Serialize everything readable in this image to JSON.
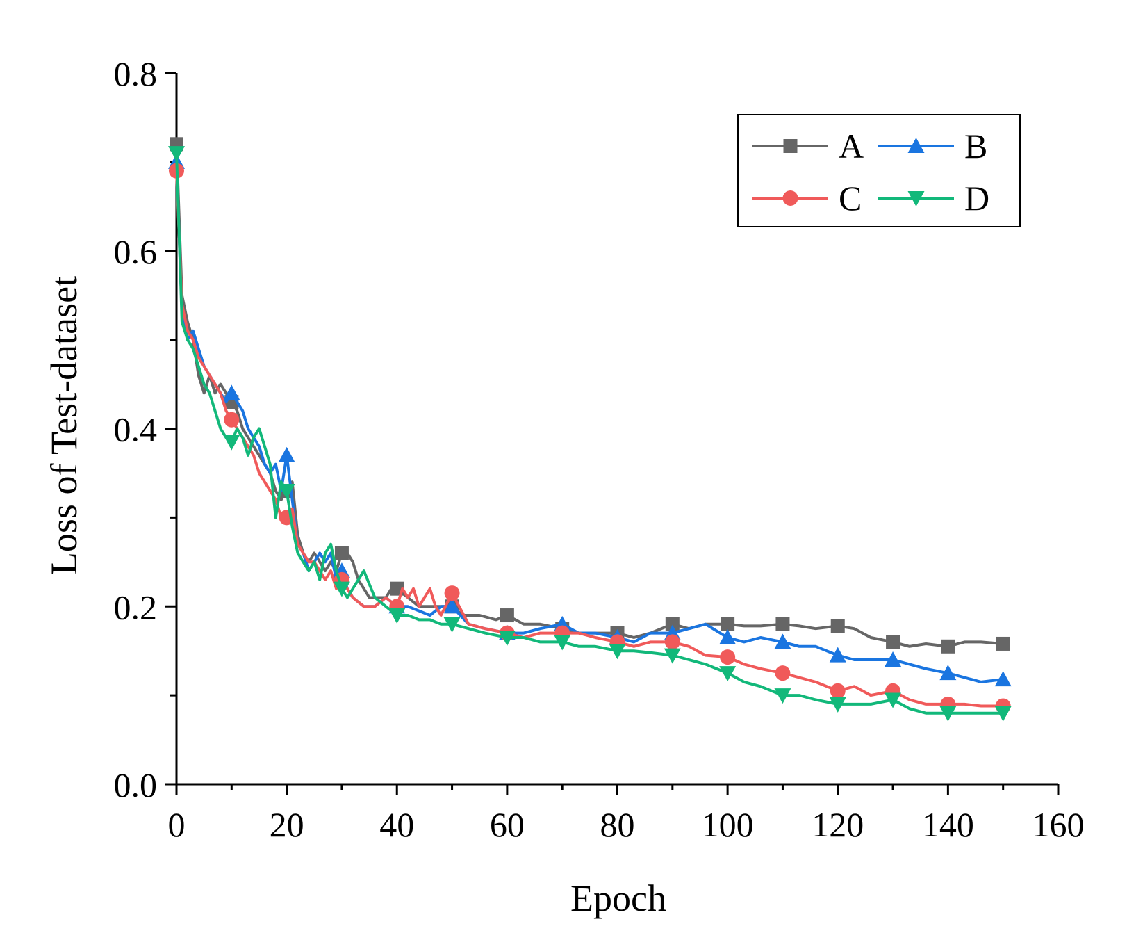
{
  "chart_data": {
    "type": "line",
    "title": "",
    "xlabel": "Epoch",
    "ylabel": "Loss of Test-dataset",
    "xlim": [
      0,
      160
    ],
    "ylim": [
      0.0,
      0.8
    ],
    "xticks": [
      0,
      20,
      40,
      60,
      80,
      100,
      120,
      140,
      160
    ],
    "yticks": [
      0.0,
      0.2,
      0.4,
      0.6,
      0.8
    ],
    "xtick_labels": [
      "0",
      "20",
      "40",
      "60",
      "80",
      "100",
      "120",
      "140",
      "160"
    ],
    "ytick_labels": [
      "0.0",
      "0.2",
      "0.4",
      "0.6",
      "0.8"
    ],
    "grid": false,
    "legend": {
      "position": "top-right",
      "columns": 2
    },
    "series": [
      {
        "name": "A",
        "color": "#666666",
        "marker": "square",
        "marker_every": 10,
        "x": [
          0,
          1,
          2,
          3,
          4,
          5,
          6,
          7,
          8,
          9,
          10,
          11,
          12,
          13,
          14,
          15,
          16,
          17,
          18,
          19,
          20,
          21,
          22,
          23,
          24,
          25,
          26,
          27,
          28,
          29,
          30,
          31,
          32,
          33,
          34,
          35,
          36,
          38,
          39,
          40,
          42,
          44,
          46,
          48,
          50,
          52,
          55,
          58,
          60,
          63,
          66,
          70,
          73,
          76,
          80,
          83,
          86,
          90,
          93,
          96,
          100,
          103,
          106,
          110,
          113,
          116,
          120,
          123,
          126,
          130,
          133,
          136,
          140,
          143,
          146,
          150
        ],
        "values": [
          0.72,
          0.55,
          0.52,
          0.5,
          0.46,
          0.44,
          0.46,
          0.44,
          0.45,
          0.44,
          0.43,
          0.42,
          0.4,
          0.39,
          0.38,
          0.37,
          0.36,
          0.35,
          0.33,
          0.32,
          0.33,
          0.34,
          0.28,
          0.26,
          0.25,
          0.26,
          0.25,
          0.24,
          0.25,
          0.24,
          0.26,
          0.26,
          0.25,
          0.23,
          0.22,
          0.21,
          0.21,
          0.21,
          0.22,
          0.22,
          0.21,
          0.2,
          0.2,
          0.2,
          0.2,
          0.19,
          0.19,
          0.185,
          0.19,
          0.18,
          0.18,
          0.175,
          0.17,
          0.17,
          0.17,
          0.165,
          0.17,
          0.18,
          0.175,
          0.18,
          0.18,
          0.178,
          0.178,
          0.18,
          0.178,
          0.175,
          0.178,
          0.175,
          0.165,
          0.16,
          0.155,
          0.158,
          0.155,
          0.16,
          0.16,
          0.158
        ]
      },
      {
        "name": "B",
        "color": "#1a75e0",
        "marker": "triangle-up",
        "marker_every": 10,
        "x": [
          0,
          1,
          2,
          3,
          4,
          5,
          6,
          7,
          8,
          9,
          10,
          11,
          12,
          13,
          14,
          15,
          16,
          17,
          18,
          19,
          20,
          21,
          22,
          23,
          24,
          25,
          26,
          27,
          28,
          29,
          30,
          31,
          32,
          34,
          36,
          38,
          40,
          42,
          44,
          46,
          48,
          50,
          53,
          56,
          60,
          63,
          66,
          70,
          73,
          76,
          80,
          83,
          86,
          90,
          93,
          96,
          100,
          103,
          106,
          110,
          113,
          116,
          120,
          123,
          126,
          130,
          133,
          136,
          140,
          143,
          146,
          150
        ],
        "values": [
          0.7,
          0.53,
          0.5,
          0.51,
          0.49,
          0.47,
          0.46,
          0.45,
          0.44,
          0.43,
          0.44,
          0.43,
          0.42,
          0.4,
          0.39,
          0.38,
          0.36,
          0.35,
          0.36,
          0.33,
          0.37,
          0.32,
          0.27,
          0.26,
          0.24,
          0.25,
          0.26,
          0.25,
          0.26,
          0.23,
          0.24,
          0.22,
          0.21,
          0.2,
          0.2,
          0.21,
          0.2,
          0.2,
          0.195,
          0.19,
          0.2,
          0.2,
          0.18,
          0.175,
          0.17,
          0.17,
          0.175,
          0.18,
          0.17,
          0.17,
          0.165,
          0.16,
          0.17,
          0.17,
          0.175,
          0.18,
          0.165,
          0.16,
          0.165,
          0.16,
          0.155,
          0.155,
          0.145,
          0.14,
          0.14,
          0.14,
          0.135,
          0.13,
          0.125,
          0.12,
          0.115,
          0.118
        ]
      },
      {
        "name": "C",
        "color": "#f05a5a",
        "marker": "circle",
        "marker_every": 10,
        "x": [
          0,
          1,
          2,
          3,
          4,
          5,
          6,
          7,
          8,
          9,
          10,
          11,
          12,
          13,
          14,
          15,
          16,
          17,
          18,
          19,
          20,
          21,
          22,
          23,
          24,
          25,
          26,
          27,
          28,
          29,
          30,
          31,
          32,
          34,
          36,
          38,
          40,
          41,
          42,
          43,
          44,
          45,
          46,
          47,
          48,
          50,
          53,
          56,
          60,
          63,
          66,
          70,
          73,
          76,
          80,
          83,
          86,
          90,
          93,
          96,
          100,
          103,
          106,
          110,
          113,
          116,
          120,
          123,
          126,
          130,
          133,
          136,
          140,
          143,
          146,
          150
        ],
        "values": [
          0.69,
          0.54,
          0.51,
          0.5,
          0.48,
          0.47,
          0.46,
          0.45,
          0.44,
          0.42,
          0.41,
          0.4,
          0.39,
          0.38,
          0.37,
          0.35,
          0.34,
          0.33,
          0.32,
          0.3,
          0.3,
          0.31,
          0.27,
          0.26,
          0.25,
          0.25,
          0.24,
          0.23,
          0.24,
          0.22,
          0.23,
          0.22,
          0.21,
          0.2,
          0.2,
          0.21,
          0.2,
          0.22,
          0.21,
          0.22,
          0.2,
          0.21,
          0.22,
          0.2,
          0.19,
          0.215,
          0.18,
          0.175,
          0.17,
          0.165,
          0.17,
          0.17,
          0.17,
          0.165,
          0.16,
          0.155,
          0.16,
          0.16,
          0.155,
          0.145,
          0.143,
          0.135,
          0.13,
          0.125,
          0.12,
          0.115,
          0.105,
          0.11,
          0.1,
          0.105,
          0.095,
          0.09,
          0.09,
          0.09,
          0.088,
          0.088
        ]
      },
      {
        "name": "D",
        "color": "#12b87a",
        "marker": "triangle-down",
        "marker_every": 10,
        "x": [
          0,
          1,
          2,
          3,
          4,
          5,
          6,
          7,
          8,
          9,
          10,
          11,
          12,
          13,
          14,
          15,
          16,
          17,
          18,
          19,
          20,
          21,
          22,
          23,
          24,
          25,
          26,
          27,
          28,
          29,
          30,
          31,
          32,
          34,
          36,
          38,
          40,
          42,
          44,
          46,
          48,
          50,
          53,
          56,
          60,
          63,
          66,
          70,
          73,
          76,
          80,
          83,
          86,
          90,
          93,
          96,
          100,
          103,
          106,
          110,
          113,
          116,
          120,
          123,
          126,
          130,
          133,
          136,
          140,
          143,
          146,
          150
        ],
        "values": [
          0.71,
          0.52,
          0.5,
          0.49,
          0.47,
          0.45,
          0.44,
          0.42,
          0.4,
          0.39,
          0.385,
          0.4,
          0.39,
          0.37,
          0.39,
          0.4,
          0.38,
          0.36,
          0.3,
          0.34,
          0.33,
          0.29,
          0.26,
          0.25,
          0.24,
          0.25,
          0.23,
          0.26,
          0.27,
          0.24,
          0.22,
          0.21,
          0.22,
          0.24,
          0.21,
          0.2,
          0.19,
          0.19,
          0.185,
          0.185,
          0.18,
          0.18,
          0.175,
          0.17,
          0.165,
          0.165,
          0.16,
          0.16,
          0.155,
          0.155,
          0.15,
          0.15,
          0.148,
          0.145,
          0.14,
          0.135,
          0.125,
          0.115,
          0.11,
          0.1,
          0.1,
          0.095,
          0.09,
          0.09,
          0.09,
          0.095,
          0.085,
          0.08,
          0.08,
          0.08,
          0.08,
          0.08
        ]
      }
    ]
  }
}
